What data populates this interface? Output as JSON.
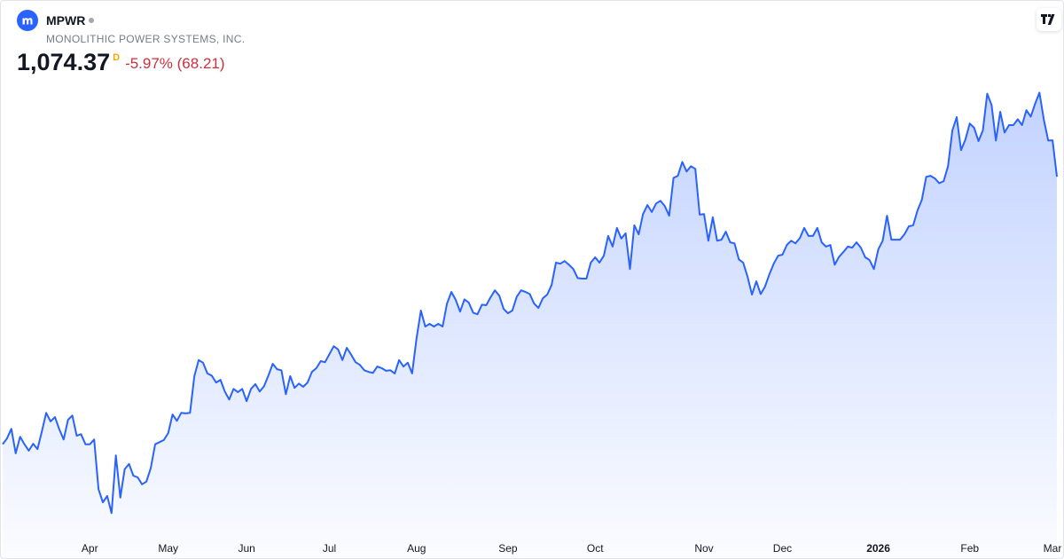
{
  "header": {
    "symbol": "MPWR",
    "name": "MONOLITHIC POWER SYSTEMS, INC.",
    "price": "1,074.37",
    "interval": "D",
    "change": "-5.97% (68.21)"
  },
  "chart_data": {
    "type": "area",
    "color": "#2962ff",
    "values": [
      572,
      583,
      601,
      555,
      586,
      572,
      560,
      573,
      563,
      596,
      631,
      615,
      623,
      600,
      581,
      618,
      626,
      588,
      591,
      572,
      572,
      581,
      488,
      463,
      475,
      443,
      551,
      472,
      525,
      535,
      513,
      510,
      497,
      502,
      527,
      572,
      576,
      580,
      593,
      628,
      616,
      631,
      630,
      631,
      700,
      730,
      725,
      705,
      701,
      688,
      693,
      671,
      656,
      676,
      670,
      676,
      653,
      676,
      685,
      671,
      681,
      701,
      723,
      713,
      711,
      666,
      700,
      678,
      686,
      680,
      688,
      708,
      715,
      728,
      726,
      741,
      756,
      750,
      730,
      753,
      740,
      726,
      721,
      711,
      708,
      706,
      718,
      715,
      710,
      711,
      705,
      730,
      718,
      725,
      705,
      771,
      823,
      793,
      798,
      793,
      798,
      793,
      836,
      858,
      843,
      821,
      844,
      838,
      819,
      816,
      834,
      833,
      848,
      861,
      851,
      826,
      818,
      823,
      849,
      861,
      858,
      854,
      836,
      828,
      846,
      853,
      871,
      913,
      911,
      916,
      909,
      901,
      884,
      883,
      883,
      913,
      923,
      913,
      926,
      963,
      943,
      978,
      958,
      968,
      901,
      983,
      966,
      1004,
      1021,
      1008,
      1024,
      1029,
      1019,
      1001,
      1072,
      1076,
      1102,
      1084,
      1094,
      1089,
      1003,
      1004,
      954,
      998,
      954,
      956,
      971,
      951,
      949,
      919,
      913,
      886,
      853,
      878,
      854,
      868,
      891,
      911,
      926,
      928,
      946,
      954,
      949,
      959,
      978,
      963,
      963,
      978,
      951,
      943,
      946,
      909,
      924,
      933,
      943,
      941,
      951,
      941,
      923,
      918,
      901,
      938,
      954,
      1001,
      956,
      956,
      956,
      966,
      981,
      983,
      1011,
      1031,
      1074,
      1076,
      1071,
      1062,
      1066,
      1094,
      1161,
      1186,
      1124,
      1144,
      1174,
      1166,
      1141,
      1161,
      1230,
      1209,
      1142,
      1196,
      1157,
      1171,
      1171,
      1182,
      1171,
      1199,
      1187,
      1211,
      1232,
      1181,
      1142,
      1142.58,
      1074.37
    ],
    "xlim": [
      0,
      242
    ],
    "ylim": [
      405,
      1246
    ],
    "xticks": [
      {
        "value": 20,
        "label": "Apr"
      },
      {
        "value": 38,
        "label": "May"
      },
      {
        "value": 56,
        "label": "Jun"
      },
      {
        "value": 75,
        "label": "Jul"
      },
      {
        "value": 95,
        "label": "Aug"
      },
      {
        "value": 116,
        "label": "Sep"
      },
      {
        "value": 136,
        "label": "Oct"
      },
      {
        "value": 161,
        "label": "Nov"
      },
      {
        "value": 179,
        "label": "Dec"
      },
      {
        "value": 201,
        "label": "2026"
      },
      {
        "value": 222,
        "label": "Feb"
      },
      {
        "value": 241,
        "label": "Mar"
      }
    ]
  }
}
